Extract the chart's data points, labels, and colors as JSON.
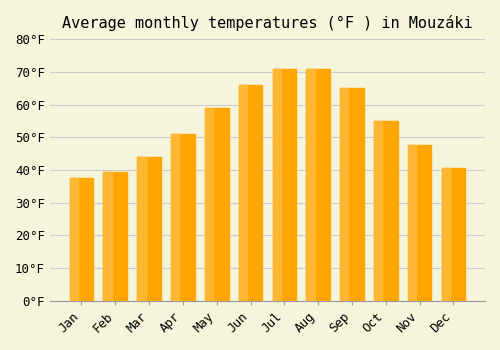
{
  "title": "Average monthly temperatures (°F ) in Mouzáki",
  "months": [
    "Jan",
    "Feb",
    "Mar",
    "Apr",
    "May",
    "Jun",
    "Jul",
    "Aug",
    "Sep",
    "Oct",
    "Nov",
    "Dec"
  ],
  "values": [
    37.5,
    39.5,
    44.0,
    51.0,
    59.0,
    66.0,
    71.0,
    71.0,
    65.0,
    55.0,
    47.5,
    40.5
  ],
  "bar_color_main": "#FFA500",
  "bar_color_edge": "#FFB733",
  "background_color": "#F5F5DC",
  "grid_color": "#CCCCCC",
  "ylim": [
    0,
    80
  ],
  "yticks": [
    0,
    10,
    20,
    30,
    40,
    50,
    60,
    70,
    80
  ],
  "ytick_labels": [
    "0°F",
    "10°F",
    "20°F",
    "30°F",
    "40°F",
    "50°F",
    "60°F",
    "70°F",
    "80°F"
  ],
  "title_fontsize": 11,
  "tick_fontsize": 9,
  "font_family": "monospace"
}
